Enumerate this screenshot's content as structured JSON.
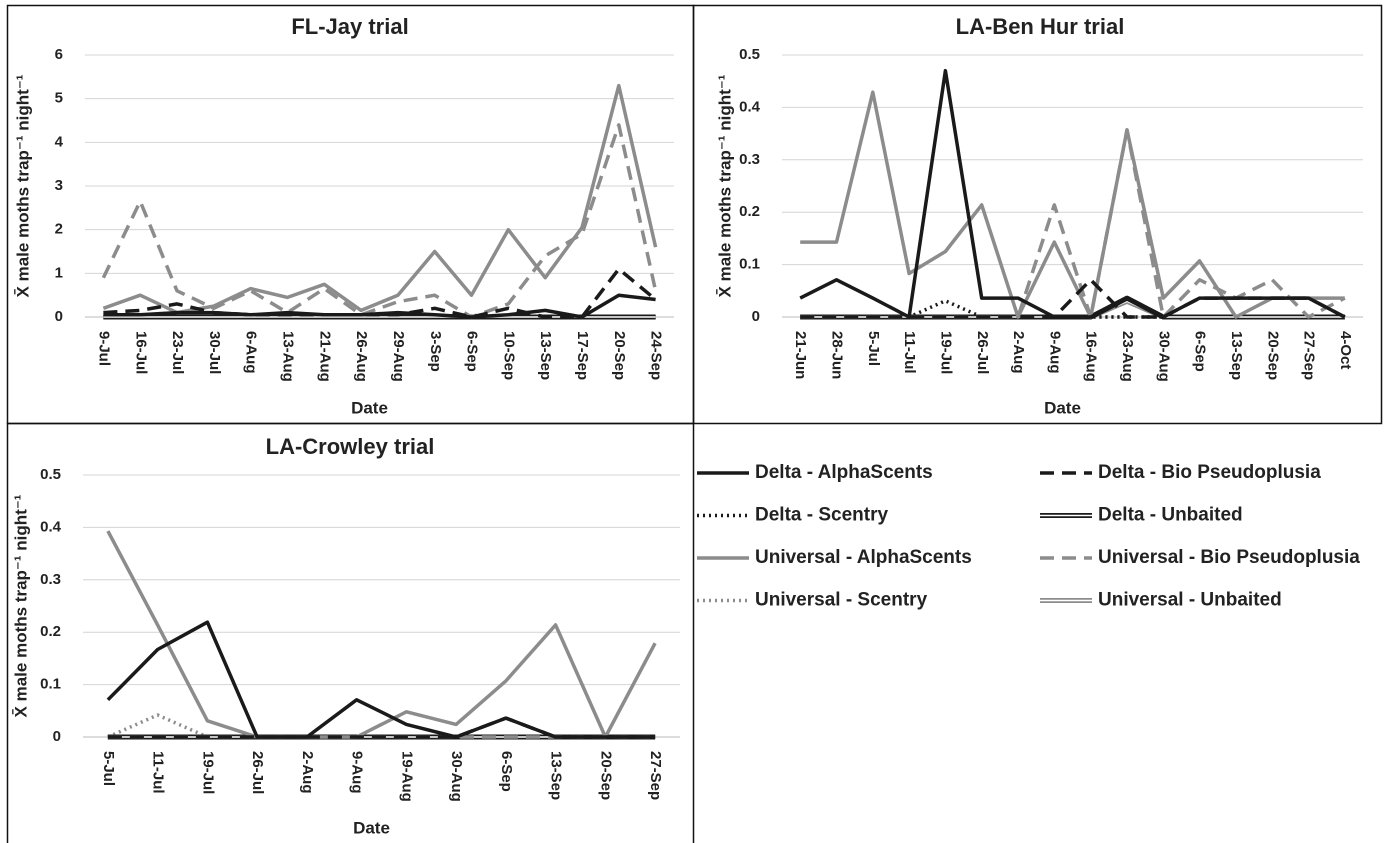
{
  "chart_data": [
    {
      "type": "line",
      "title": "FL-Jay trial",
      "x_label": "Date",
      "y_label": "X̄ male moths trap⁻¹ night⁻¹",
      "categories": [
        "9-Jul",
        "16-Jul",
        "23-Jul",
        "30-Jul",
        "6-Aug",
        "13-Aug",
        "21-Aug",
        "26-Aug",
        "29-Aug",
        "3-Sep",
        "6-Sep",
        "10-Sep",
        "13-Sep",
        "17-Sep",
        "20-Sep",
        "24-Sep"
      ],
      "ylim": [
        0,
        6
      ],
      "yticks": [
        0,
        1,
        2,
        3,
        4,
        5,
        6
      ],
      "grid": true,
      "series": [
        {
          "name": "Delta - AlphaScents",
          "color": "#1a1a1a",
          "dash": "solid",
          "values": [
            0.05,
            0.05,
            0.1,
            0.1,
            0.05,
            0.1,
            0.05,
            0.05,
            0.1,
            0.05,
            0,
            0.05,
            0.15,
            0,
            0.5,
            0.4
          ]
        },
        {
          "name": "Delta - Bio Pseudoplusia",
          "color": "#1a1a1a",
          "dash": "dashed",
          "values": [
            0.1,
            0.15,
            0.3,
            0.1,
            0.05,
            0.05,
            0.05,
            0.05,
            0.05,
            0.2,
            0,
            0.2,
            0,
            0,
            1.1,
            0.4
          ]
        },
        {
          "name": "Delta - Scentry",
          "color": "#1a1a1a",
          "dash": "dotted",
          "values": [
            0,
            0,
            0,
            0,
            0,
            0,
            0,
            0,
            0,
            0,
            0,
            0,
            0,
            0,
            0,
            0
          ]
        },
        {
          "name": "Delta - Unbaited",
          "color": "#1a1a1a",
          "dash": "double",
          "values": [
            0,
            0,
            0,
            0,
            0,
            0,
            0,
            0,
            0,
            0,
            0,
            0,
            0,
            0,
            0,
            0
          ]
        },
        {
          "name": "Universal - AlphaScents",
          "color": "#8c8c8c",
          "dash": "solid",
          "values": [
            0.2,
            0.5,
            0.1,
            0.25,
            0.65,
            0.45,
            0.75,
            0.15,
            0.5,
            1.5,
            0.5,
            2.0,
            0.9,
            2.05,
            5.3,
            1.6
          ]
        },
        {
          "name": "Universal - Bio Pseudoplusia",
          "color": "#8c8c8c",
          "dash": "dashed",
          "values": [
            0.9,
            2.65,
            0.6,
            0.2,
            0.6,
            0.1,
            0.65,
            0.05,
            0.35,
            0.5,
            0,
            0.3,
            1.4,
            1.9,
            4.4,
            0.6
          ]
        },
        {
          "name": "Universal - Scentry",
          "color": "#8c8c8c",
          "dash": "dotted",
          "values": [
            0,
            0,
            0,
            0,
            0,
            0,
            0,
            0,
            0,
            0,
            0,
            0,
            0,
            0,
            0,
            0
          ]
        },
        {
          "name": "Universal - Unbaited",
          "color": "#8c8c8c",
          "dash": "double",
          "values": [
            0,
            0,
            0,
            0,
            0,
            0,
            0,
            0,
            0,
            0,
            0,
            0,
            0,
            0,
            0,
            0
          ]
        }
      ]
    },
    {
      "type": "line",
      "title": "LA-Ben Hur trial",
      "x_label": "Date",
      "y_label": "X̄ male moths trap⁻¹ night⁻¹",
      "categories": [
        "21-Jun",
        "28-Jun",
        "5-Jul",
        "11-Jul",
        "19-Jul",
        "26-Jul",
        "2-Aug",
        "9-Aug",
        "16-Aug",
        "23-Aug",
        "30-Aug",
        "6-Sep",
        "13-Sep",
        "20-Sep",
        "27-Sep",
        "4-Oct"
      ],
      "ylim": [
        0,
        0.5
      ],
      "yticks": [
        0,
        0.1,
        0.2,
        0.3,
        0.4,
        0.5
      ],
      "grid": true,
      "series": [
        {
          "name": "Delta - AlphaScents",
          "color": "#1a1a1a",
          "dash": "solid",
          "values": [
            0.036,
            0.071,
            0.036,
            0,
            0.47,
            0.036,
            0.036,
            0,
            0,
            0.036,
            0,
            0.036,
            0.036,
            0.036,
            0.036,
            0
          ]
        },
        {
          "name": "Delta - Bio Pseudoplusia",
          "color": "#1a1a1a",
          "dash": "dashed",
          "values": [
            0,
            0,
            0,
            0,
            0,
            0,
            0,
            0,
            0.071,
            0,
            0,
            0.036,
            0.036,
            0.036,
            0.036,
            0
          ]
        },
        {
          "name": "Delta - Scentry",
          "color": "#1a1a1a",
          "dash": "dotted",
          "values": [
            0,
            0,
            0,
            0,
            0.031,
            0,
            0,
            0,
            0,
            0,
            0,
            0,
            0,
            0,
            0,
            0
          ]
        },
        {
          "name": "Delta - Unbaited",
          "color": "#1a1a1a",
          "dash": "double",
          "values": [
            0,
            0,
            0,
            0,
            0,
            0,
            0,
            0,
            0,
            0.036,
            0,
            0,
            0,
            0,
            0,
            0
          ]
        },
        {
          "name": "Universal - AlphaScents",
          "color": "#8c8c8c",
          "dash": "solid",
          "values": [
            0.143,
            0.143,
            0.429,
            0.083,
            0.125,
            0.214,
            0,
            0.143,
            0,
            0.357,
            0.036,
            0.107,
            0,
            0.036,
            0.036,
            0.036
          ]
        },
        {
          "name": "Universal - Bio Pseudoplusia",
          "color": "#8c8c8c",
          "dash": "dashed",
          "values": [
            0,
            0,
            0,
            0,
            0,
            0,
            0,
            0.214,
            0,
            0.357,
            0,
            0.071,
            0.036,
            0.071,
            0,
            0.036
          ]
        },
        {
          "name": "Universal - Scentry",
          "color": "#8c8c8c",
          "dash": "dotted",
          "values": [
            0,
            0,
            0,
            0,
            0,
            0,
            0,
            0,
            0,
            0,
            0,
            0,
            0,
            0,
            0,
            0
          ]
        },
        {
          "name": "Universal - Unbaited",
          "color": "#8c8c8c",
          "dash": "double",
          "values": [
            0,
            0,
            0,
            0,
            0,
            0,
            0,
            0,
            0,
            0.03,
            0,
            0,
            0,
            0,
            0,
            0
          ]
        }
      ]
    },
    {
      "type": "line",
      "title": "LA-Crowley trial",
      "x_label": "Date",
      "y_label": "X̄ male moths trap⁻¹ night⁻¹",
      "categories": [
        "5-Jul",
        "11-Jul",
        "19-Jul",
        "26-Jul",
        "2-Aug",
        "9-Aug",
        "19-Aug",
        "30-Aug",
        "6-Sep",
        "13-Sep",
        "20-Sep",
        "27-Sep"
      ],
      "ylim": [
        0,
        0.5
      ],
      "yticks": [
        0,
        0.1,
        0.2,
        0.3,
        0.4,
        0.5
      ],
      "grid": true,
      "series": [
        {
          "name": "Delta - AlphaScents",
          "color": "#1a1a1a",
          "dash": "solid",
          "values": [
            0.071,
            0.167,
            0.219,
            0,
            0,
            0.071,
            0.024,
            0,
            0.036,
            0,
            0,
            0
          ]
        },
        {
          "name": "Delta - Bio Pseudoplusia",
          "color": "#1a1a1a",
          "dash": "dashed",
          "values": [
            0,
            0,
            0,
            0,
            0,
            0,
            0,
            0,
            0.036,
            0,
            0,
            0
          ]
        },
        {
          "name": "Delta - Scentry",
          "color": "#1a1a1a",
          "dash": "dotted",
          "values": [
            0,
            0,
            0,
            0,
            0,
            0,
            0,
            0,
            0,
            0,
            0,
            0
          ]
        },
        {
          "name": "Delta - Unbaited",
          "color": "#1a1a1a",
          "dash": "double",
          "values": [
            0,
            0,
            0,
            0,
            0,
            0,
            0,
            0,
            0,
            0,
            0,
            0
          ]
        },
        {
          "name": "Universal - AlphaScents",
          "color": "#8c8c8c",
          "dash": "solid",
          "values": [
            0.393,
            0.214,
            0.031,
            0,
            0,
            0,
            0.048,
            0.024,
            0.107,
            0.214,
            0,
            0.179
          ]
        },
        {
          "name": "Universal - Bio Pseudoplusia",
          "color": "#8c8c8c",
          "dash": "dashed",
          "values": [
            0,
            0,
            0,
            0,
            0,
            0,
            0,
            0,
            0,
            0,
            0,
            0
          ]
        },
        {
          "name": "Universal - Scentry",
          "color": "#8c8c8c",
          "dash": "dotted",
          "values": [
            0,
            0.042,
            0,
            0,
            0,
            0,
            0,
            0,
            0,
            0,
            0,
            0
          ]
        },
        {
          "name": "Universal - Unbaited",
          "color": "#8c8c8c",
          "dash": "double",
          "values": [
            0,
            0,
            0,
            0,
            0,
            0,
            0,
            0,
            0,
            0,
            0,
            0
          ]
        }
      ]
    }
  ]
}
